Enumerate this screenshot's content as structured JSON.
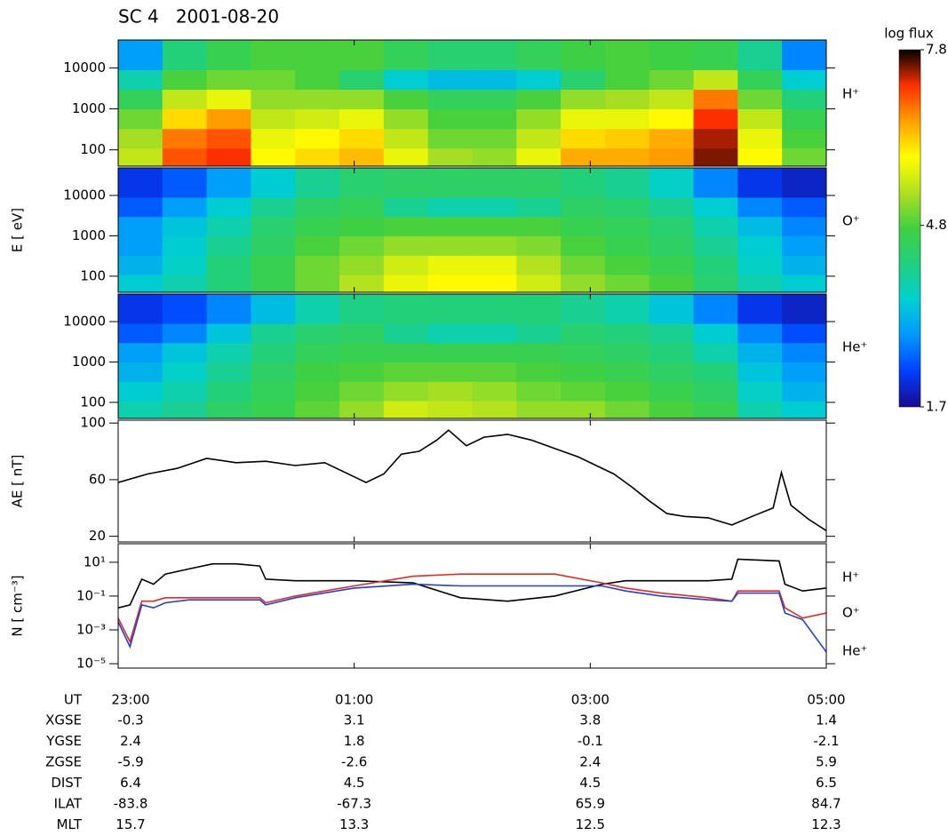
{
  "title": "SC 4   2001-08-20",
  "time_axis": {
    "xlim": [
      0,
      6
    ],
    "xticks": [
      {
        "value": 0,
        "label": "23:00"
      },
      {
        "value": 2,
        "label": "01:00"
      },
      {
        "value": 4,
        "label": "03:00"
      },
      {
        "value": 6,
        "label": "05:00"
      }
    ]
  },
  "spectrogram_bins": {
    "time": [
      0,
      0.375,
      0.75,
      1.125,
      1.5,
      1.875,
      2.25,
      2.625,
      3,
      3.375,
      3.75,
      4.125,
      4.5,
      4.875,
      5.25,
      5.625,
      6
    ],
    "energy": [
      40,
      110,
      330,
      1000,
      3000,
      9000,
      48000
    ]
  },
  "colorbar": {
    "label": "log flux",
    "clim": [
      1.7,
      7.8
    ],
    "ticks": [
      1.7,
      4.8,
      7.8
    ],
    "colormap": [
      "#1a0a8c",
      "#0040ff",
      "#0098ff",
      "#00d0d0",
      "#20d080",
      "#40d040",
      "#b0e020",
      "#ffff00",
      "#ffa000",
      "#ff3000",
      "#000000"
    ]
  },
  "chart_data": [
    {
      "type": "heatmap",
      "species": "H⁺",
      "ylim": [
        40,
        48000
      ],
      "yticks": [
        100,
        1000,
        10000
      ],
      "log": true,
      "z": [
        [
          5.5,
          7,
          7.2,
          6,
          6.2,
          6.4,
          5.8,
          5.3,
          5.2,
          5.8,
          6.5,
          6.5,
          6.6,
          7.5,
          6,
          5
        ],
        [
          5.3,
          6.8,
          7,
          5.8,
          6,
          6.2,
          5.5,
          5,
          5,
          5.5,
          6.2,
          6.3,
          6.5,
          7.4,
          5.8,
          4.8
        ],
        [
          5,
          6.2,
          6.6,
          5.5,
          5.6,
          5.8,
          5.2,
          4.8,
          4.8,
          5.2,
          5.8,
          5.8,
          6,
          7.2,
          5.5,
          4.6
        ],
        [
          4.5,
          5.5,
          5.8,
          5.2,
          5.2,
          5.2,
          4.8,
          4.5,
          4.5,
          4.8,
          5.2,
          5.3,
          5.5,
          6.8,
          5,
          4.2
        ],
        [
          3.8,
          4.8,
          5,
          5,
          4.8,
          4.3,
          3.5,
          3.3,
          3.3,
          3.5,
          4.3,
          4.8,
          5,
          5.5,
          4.5,
          3.5
        ],
        [
          3,
          4.2,
          4.6,
          4.8,
          4.8,
          4.8,
          4.5,
          4.3,
          4.3,
          4.5,
          4.7,
          4.8,
          4.7,
          4.6,
          4,
          2.8
        ]
      ]
    },
    {
      "type": "heatmap",
      "species": "O⁺",
      "ylabel": "E [ eV]",
      "ylim": [
        40,
        48000
      ],
      "yticks": [
        100,
        1000,
        10000
      ],
      "log": true,
      "z": [
        [
          3.5,
          3.8,
          4.2,
          4.6,
          5,
          5.4,
          5.8,
          6,
          6,
          5.6,
          5.2,
          5,
          4.8,
          4.3,
          3.8,
          3.5
        ],
        [
          3.2,
          3.6,
          4.2,
          4.6,
          5,
          5.2,
          5.6,
          5.8,
          5.8,
          5.4,
          5,
          4.8,
          4.6,
          4.2,
          3.6,
          3.2
        ],
        [
          3,
          3.5,
          4,
          4.4,
          4.8,
          5,
          5.2,
          5.2,
          5.2,
          5.1,
          4.8,
          4.6,
          4.4,
          4,
          3.5,
          3
        ],
        [
          3,
          3.4,
          3.8,
          4.3,
          4.6,
          4.7,
          4.8,
          4.8,
          4.8,
          4.8,
          4.6,
          4.5,
          4.3,
          3.8,
          3.3,
          2.8
        ],
        [
          2.5,
          3,
          3.5,
          4,
          4.4,
          4.5,
          4,
          3.8,
          3.8,
          4,
          4.4,
          4.3,
          4,
          3.5,
          2.8,
          2.5
        ],
        [
          2.2,
          2.5,
          3,
          3.5,
          4,
          4.3,
          4.4,
          4.4,
          4.4,
          4.4,
          4.2,
          4,
          3.6,
          2.8,
          2.2,
          2
        ]
      ]
    },
    {
      "type": "heatmap",
      "species": "He⁺",
      "ylim": [
        40,
        48000
      ],
      "yticks": [
        100,
        1000,
        10000
      ],
      "log": true,
      "z": [
        [
          3.8,
          4,
          4.4,
          4.6,
          4.9,
          5.2,
          5.6,
          5.5,
          5.4,
          5.2,
          5.2,
          5,
          4.8,
          4.6,
          3.8,
          3.5
        ],
        [
          3.5,
          3.8,
          4.2,
          4.5,
          4.8,
          5,
          5.2,
          5.3,
          5.2,
          5,
          4.9,
          4.8,
          4.6,
          4.4,
          3.6,
          3.2
        ],
        [
          3.2,
          3.6,
          4,
          4.4,
          4.7,
          4.8,
          4.9,
          4.9,
          4.9,
          4.8,
          4.7,
          4.6,
          4.4,
          4.2,
          3.4,
          3
        ],
        [
          3,
          3.4,
          3.8,
          4.2,
          4.5,
          4.6,
          4.6,
          4.6,
          4.6,
          4.6,
          4.5,
          4.4,
          4.2,
          3.8,
          3.2,
          2.8
        ],
        [
          2.5,
          2.8,
          3.4,
          4,
          4.3,
          4.4,
          4,
          3.8,
          3.8,
          4,
          4.3,
          4.2,
          4,
          3.5,
          2.8,
          2.4
        ],
        [
          2.2,
          2.4,
          2.8,
          3.3,
          3.8,
          4.1,
          4.2,
          4.2,
          4.2,
          4.2,
          4,
          3.8,
          3.4,
          2.8,
          2.2,
          2
        ]
      ]
    },
    {
      "type": "line",
      "ylabel": "AE [ nT]",
      "ylim": [
        16,
        102
      ],
      "yticks": [
        20,
        60,
        100
      ],
      "log": false,
      "x": [
        0,
        0.25,
        0.5,
        0.75,
        1,
        1.25,
        1.5,
        1.75,
        2,
        2.1,
        2.25,
        2.4,
        2.55,
        2.7,
        2.8,
        2.95,
        3.1,
        3.3,
        3.5,
        3.7,
        3.9,
        4.05,
        4.2,
        4.35,
        4.5,
        4.65,
        4.8,
        5,
        5.2,
        5.4,
        5.55,
        5.62,
        5.7,
        5.85,
        6
      ],
      "series": [
        {
          "color": "#000000",
          "values": [
            58,
            64,
            68,
            75,
            72,
            73,
            70,
            72,
            62,
            58,
            64,
            78,
            80,
            88,
            95,
            84,
            90,
            92,
            88,
            82,
            76,
            70,
            64,
            55,
            45,
            36,
            34,
            33,
            28,
            35,
            40,
            65,
            42,
            32,
            24
          ]
        }
      ]
    },
    {
      "type": "line",
      "ylabel": "N [ cm⁻³]",
      "ylim": [
        5.5e-06,
        125
      ],
      "log": true,
      "yticks": [
        {
          "value": 10,
          "label": "10¹"
        },
        {
          "value": 0.1,
          "label": "10⁻¹"
        },
        {
          "value": 0.001,
          "label": "10⁻³"
        },
        {
          "value": 1e-05,
          "label": "10⁻⁵"
        }
      ],
      "x": [
        0,
        0.1,
        0.2,
        0.3,
        0.4,
        0.6,
        0.8,
        1,
        1.2,
        1.25,
        1.5,
        2,
        2.5,
        2.9,
        3.3,
        3.7,
        4.1,
        4.3,
        4.6,
        5,
        5.2,
        5.25,
        5.6,
        5.65,
        5.8,
        6
      ],
      "series": [
        {
          "name": "H⁺",
          "color": "#000000",
          "values": [
            0.02,
            0.03,
            1,
            0.5,
            2,
            4,
            8,
            8,
            6,
            1,
            0.8,
            0.8,
            0.6,
            0.08,
            0.05,
            0.1,
            0.5,
            0.8,
            0.8,
            0.8,
            1,
            15,
            12,
            0.5,
            0.2,
            0.3
          ]
        },
        {
          "name": "O⁺",
          "color": "#e8291c",
          "values": [
            0.005,
            0.0002,
            0.05,
            0.05,
            0.08,
            0.08,
            0.08,
            0.08,
            0.08,
            0.04,
            0.1,
            0.4,
            1.5,
            2,
            2,
            2,
            0.6,
            0.3,
            0.15,
            0.08,
            0.05,
            0.2,
            0.2,
            0.02,
            0.005,
            0.01
          ]
        },
        {
          "name": "He⁺",
          "color": "#1f3fe0",
          "values": [
            0.003,
            0.0001,
            0.03,
            0.02,
            0.04,
            0.06,
            0.06,
            0.06,
            0.06,
            0.03,
            0.08,
            0.3,
            0.5,
            0.4,
            0.4,
            0.4,
            0.4,
            0.2,
            0.1,
            0.06,
            0.05,
            0.15,
            0.15,
            0.01,
            0.004,
            5e-05
          ]
        }
      ]
    }
  ],
  "ephemeris": {
    "label": "UT",
    "rows": [
      {
        "name": "XGSE",
        "values": [
          -0.3,
          3.1,
          3.8,
          1.4
        ]
      },
      {
        "name": "YGSE",
        "values": [
          2.4,
          1.8,
          -0.1,
          -2.1
        ]
      },
      {
        "name": "ZGSE",
        "values": [
          -5.9,
          -2.6,
          2.4,
          5.9
        ]
      },
      {
        "name": "DIST",
        "values": [
          6.4,
          4.5,
          4.5,
          6.5
        ]
      },
      {
        "name": "ILAT",
        "values": [
          -83.8,
          -67.3,
          65.9,
          84.7
        ]
      },
      {
        "name": "MLT",
        "values": [
          15.7,
          13.3,
          12.5,
          12.3
        ]
      }
    ]
  }
}
